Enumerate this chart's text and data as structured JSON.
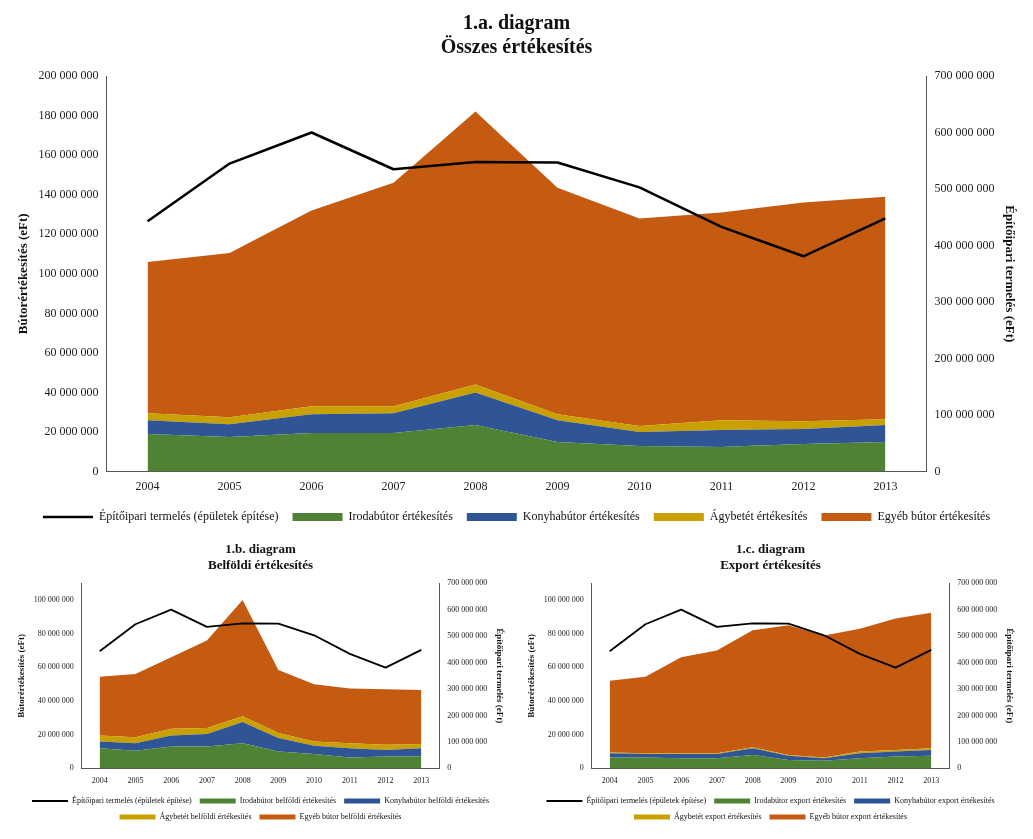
{
  "chart_data": [
    {
      "type": "area",
      "title": "1.a. diagram",
      "subtitle": "Összes értékesítés",
      "ylabel": "Bútorértékesítés (eFt)",
      "y2label": "Építőipari termelés (eFt)",
      "stacked": true,
      "legend": "bottom",
      "grid": false,
      "marker": "none",
      "categories": [
        "2004",
        "2005",
        "2006",
        "2007",
        "2008",
        "2009",
        "2010",
        "2011",
        "2012",
        "2013"
      ],
      "ylim": [
        0,
        200000000
      ],
      "yticks": [
        {
          "value": 0,
          "label": "0"
        },
        {
          "value": 20000000,
          "label": "20 000 000"
        },
        {
          "value": 40000000,
          "label": "40 000 000"
        },
        {
          "value": 60000000,
          "label": "60 000 000"
        },
        {
          "value": 80000000,
          "label": "80 000 000"
        },
        {
          "value": 100000000,
          "label": "100 000 000"
        },
        {
          "value": 120000000,
          "label": "120 000 000"
        },
        {
          "value": 140000000,
          "label": "140 000 000"
        },
        {
          "value": 160000000,
          "label": "160 000 000"
        },
        {
          "value": 180000000,
          "label": "180 000 000"
        },
        {
          "value": 200000000,
          "label": "200 000 000"
        }
      ],
      "y2lim": [
        0,
        700000000
      ],
      "y2ticks": [
        {
          "value": 0,
          "label": "0"
        },
        {
          "value": 100000000,
          "label": "100 000 000"
        },
        {
          "value": 200000000,
          "label": "200 000 000"
        },
        {
          "value": 300000000,
          "label": "300 000 000"
        },
        {
          "value": 400000000,
          "label": "400 000 000"
        },
        {
          "value": 500000000,
          "label": "500 000 000"
        },
        {
          "value": 600000000,
          "label": "600 000 000"
        },
        {
          "value": 700000000,
          "label": "700 000 000"
        }
      ],
      "series": [
        {
          "name": "Irodabútor értékesítés",
          "color": "#4f8234",
          "values": [
            19000000,
            17500000,
            19500000,
            19500000,
            23500000,
            15000000,
            13000000,
            12500000,
            14000000,
            15000000
          ]
        },
        {
          "name": "Konyhabútor értékesítés",
          "color": "#2f5597",
          "values": [
            7000000,
            6500000,
            9500000,
            10000000,
            16500000,
            11000000,
            7000000,
            8500000,
            7500000,
            8500000
          ]
        },
        {
          "name": "Ágybetét értékesítés",
          "color": "#c8a000",
          "values": [
            3500000,
            3500000,
            4000000,
            3500000,
            4000000,
            3000000,
            3000000,
            5000000,
            4000000,
            3000000
          ]
        },
        {
          "name": "Egyéb bútor értékesítés",
          "color": "#c55a11",
          "values": [
            76500000,
            83000000,
            99000000,
            113000000,
            138000000,
            114500000,
            105000000,
            105000000,
            110500000,
            112500000
          ]
        },
        {
          "name": "Építőipari termelés (épületek építése)",
          "type": "line",
          "axis": "y2",
          "color": "#000000",
          "values": [
            443000000,
            545000000,
            600000000,
            535000000,
            548000000,
            547000000,
            503000000,
            433000000,
            381000000,
            448000000
          ]
        }
      ]
    },
    {
      "type": "area",
      "title": "1.b. diagram",
      "subtitle": "Belföldi értékesítés",
      "ylabel": "Bútorértékesítés (eFt)",
      "y2label": "Építőipari termelés (eFt)",
      "stacked": true,
      "legend": "bottom",
      "grid": false,
      "marker": "none",
      "categories": [
        "2004",
        "2005",
        "2006",
        "2007",
        "2008",
        "2009",
        "2010",
        "2011",
        "2012",
        "2013"
      ],
      "ylim": [
        0,
        110000000
      ],
      "yticks": [
        {
          "value": 0,
          "label": "0"
        },
        {
          "value": 20000000,
          "label": "20 000 000"
        },
        {
          "value": 40000000,
          "label": "40 000 000"
        },
        {
          "value": 60000000,
          "label": "60 000 000"
        },
        {
          "value": 80000000,
          "label": "80 000 000"
        },
        {
          "value": 100000000,
          "label": "100 000 000"
        }
      ],
      "y2lim": [
        0,
        700000000
      ],
      "y2ticks": [
        {
          "value": 0,
          "label": "0"
        },
        {
          "value": 100000000,
          "label": "100 000 000"
        },
        {
          "value": 200000000,
          "label": "200 000 000"
        },
        {
          "value": 300000000,
          "label": "300 000 000"
        },
        {
          "value": 400000000,
          "label": "400 000 000"
        },
        {
          "value": 500000000,
          "label": "500 000 000"
        },
        {
          "value": 600000000,
          "label": "600 000 000"
        },
        {
          "value": 700000000,
          "label": "700 000 000"
        }
      ],
      "series": [
        {
          "name": "Irodabútor belföldi értékesítés",
          "color": "#4f8234",
          "values": [
            12000000,
            10500000,
            13000000,
            13000000,
            15000000,
            10000000,
            8500000,
            6500000,
            7000000,
            7000000
          ]
        },
        {
          "name": "Konyhabútor belföldi értékesítés",
          "color": "#2f5597",
          "values": [
            4000000,
            4500000,
            6500000,
            7500000,
            12500000,
            8000000,
            5000000,
            5500000,
            4000000,
            5000000
          ]
        },
        {
          "name": "Ágybetét belföldi értékesítés",
          "color": "#c8a000",
          "values": [
            3500000,
            3500000,
            4000000,
            3500000,
            3500000,
            3000000,
            2500000,
            3000000,
            3000000,
            2500000
          ]
        },
        {
          "name": "Egyéb bútor belföldi értékesítés",
          "color": "#c55a11",
          "values": [
            35000000,
            37500000,
            42500000,
            52000000,
            69000000,
            37500000,
            34000000,
            32500000,
            33000000,
            32000000
          ]
        },
        {
          "name": "Építőipari termelés (épületek építése)",
          "type": "line",
          "axis": "y2",
          "color": "#000000",
          "values": [
            443000000,
            545000000,
            600000000,
            535000000,
            548000000,
            547000000,
            503000000,
            433000000,
            381000000,
            448000000
          ]
        }
      ]
    },
    {
      "type": "area",
      "title": "1.c. diagram",
      "subtitle": "Export értékesítés",
      "ylabel": "Bútorértékesítés (eFt)",
      "y2label": "Építőipari termelés (eFt)",
      "stacked": true,
      "legend": "bottom",
      "grid": false,
      "marker": "none",
      "categories": [
        "2004",
        "2005",
        "2006",
        "2007",
        "2008",
        "2009",
        "2010",
        "2011",
        "2012",
        "2013"
      ],
      "ylim": [
        0,
        110000000
      ],
      "yticks": [
        {
          "value": 0,
          "label": "0"
        },
        {
          "value": 20000000,
          "label": "20 000 000"
        },
        {
          "value": 40000000,
          "label": "40 000 000"
        },
        {
          "value": 60000000,
          "label": "60 000 000"
        },
        {
          "value": 80000000,
          "label": "80 000 000"
        },
        {
          "value": 100000000,
          "label": "100 000 000"
        }
      ],
      "y2lim": [
        0,
        700000000
      ],
      "y2ticks": [
        {
          "value": 0,
          "label": "0"
        },
        {
          "value": 100000000,
          "label": "100 000 000"
        },
        {
          "value": 200000000,
          "label": "200 000 000"
        },
        {
          "value": 300000000,
          "label": "300 000 000"
        },
        {
          "value": 400000000,
          "label": "400 000 000"
        },
        {
          "value": 500000000,
          "label": "500 000 000"
        },
        {
          "value": 600000000,
          "label": "600 000 000"
        },
        {
          "value": 700000000,
          "label": "700 000 000"
        }
      ],
      "series": [
        {
          "name": "Irodabútor export értékesítés",
          "color": "#4f8234",
          "values": [
            6500000,
            6500000,
            6000000,
            6000000,
            8000000,
            5000000,
            4500000,
            6000000,
            7000000,
            7500000
          ]
        },
        {
          "name": "Konyhabútor export értékesítés",
          "color": "#2f5597",
          "values": [
            2500000,
            2000000,
            2500000,
            2500000,
            4000000,
            2500000,
            1500000,
            3000000,
            3000000,
            3500000
          ]
        },
        {
          "name": "Ágybetét export értékesítés",
          "color": "#c8a000",
          "values": [
            500000,
            500000,
            500000,
            500000,
            500000,
            500000,
            500000,
            1000000,
            1000000,
            1000000
          ]
        },
        {
          "name": "Egyéb bútor export értékesítés",
          "color": "#c55a11",
          "values": [
            42500000,
            45500000,
            57000000,
            61000000,
            69500000,
            77000000,
            72500000,
            73000000,
            78000000,
            80500000
          ]
        },
        {
          "name": "Építőipari termelés (épületek építése)",
          "type": "line",
          "axis": "y2",
          "color": "#000000",
          "values": [
            443000000,
            545000000,
            600000000,
            535000000,
            548000000,
            547000000,
            503000000,
            433000000,
            381000000,
            448000000
          ]
        }
      ]
    }
  ]
}
